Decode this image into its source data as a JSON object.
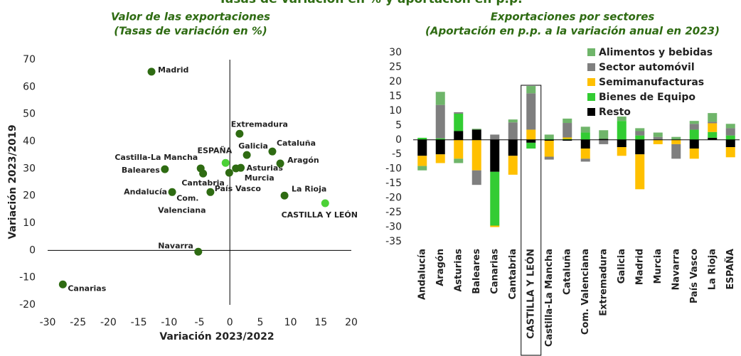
{
  "title": "Tasas de variación en % y aportación en p.p.",
  "chart_data": [
    {
      "type": "scatter",
      "subtitle": [
        "Valor de las exportaciones",
        "(Tasas de variación en %)"
      ],
      "x_label": "Variación 2023/2022",
      "y_label": "Variación 2023/2019",
      "labels": [
        "Madrid",
        "Canarias",
        "Navarra",
        "CASTILLA Y LEÓN",
        "La Rioja",
        "Andalucía",
        "Baleares",
        "Castilla-La Mancha",
        "Cantabria",
        [
          "Com.",
          "Valenciana"
        ],
        "ESPAÑA",
        "País Vasco",
        "Murcia",
        "Asturias",
        "Extremadura",
        "Galicia",
        "Cataluña",
        "Aragón"
      ],
      "x": [
        -12.9,
        -27.5,
        -5.2,
        15.7,
        9.0,
        -9.5,
        -10.7,
        -4.8,
        -4.4,
        -3.2,
        -0.7,
        -0.1,
        1.0,
        1.8,
        1.6,
        2.8,
        7.0,
        8.3
      ],
      "y": [
        65.6,
        -12.5,
        -0.5,
        17.3,
        20.1,
        21.4,
        29.8,
        30.1,
        28.2,
        21.4,
        32.1,
        28.5,
        30.1,
        30.3,
        42.8,
        35.0,
        36.3,
        31.9
      ],
      "colors": [
        "#2e6b12",
        "#2e6b12",
        "#2e6b12",
        "#4cd137",
        "#2e6b12",
        "#2e6b12",
        "#2e6b12",
        "#2e6b12",
        "#2e6b12",
        "#2e6b12",
        "#4cd137",
        "#2e6b12",
        "#2e6b12",
        "#2e6b12",
        "#2e6b12",
        "#2e6b12",
        "#2e6b12",
        "#2e6b12"
      ],
      "xlim": [
        -30,
        20
      ],
      "xticks": [
        -30,
        -25,
        -20,
        -15,
        -10,
        -5,
        0,
        5,
        10,
        15,
        20
      ],
      "ylim": [
        -20,
        70
      ],
      "yticks": [
        -20,
        -10,
        0,
        10,
        20,
        30,
        40,
        50,
        60,
        70
      ]
    },
    {
      "type": "stacked_bar",
      "subtitle": [
        "Exportaciones por sectores",
        "(Aportación en p.p. a la variación anual en 2023)"
      ],
      "categories": [
        "Andalucía",
        "Aragón",
        "Asturias",
        "Baleares",
        "Canarias",
        "Cantabria",
        "CASTILLA Y LEÓN",
        "Castilla-La Mancha",
        "Cataluña",
        "Com. Valenciana",
        "Extremadura",
        "Galicia",
        "Madrid",
        "Murcia",
        "Navarra",
        "País Vasco",
        "La Rioja",
        "ESPAÑA"
      ],
      "series": [
        {
          "name": "Alimentos y bebidas",
          "color": "#6fb56a",
          "values": [
            -1.5,
            4.5,
            -1.5,
            0.3,
            0,
            1,
            2.5,
            1.5,
            1.5,
            2,
            3,
            1.5,
            1,
            1.5,
            1,
            1,
            3,
            1.5
          ]
        },
        {
          "name": "Sector automóvil",
          "color": "#7f7f7f",
          "values": [
            0,
            11.5,
            0.5,
            -5,
            1.8,
            6,
            12.5,
            -1,
            5,
            -1,
            -1.5,
            0,
            1.5,
            1,
            -5,
            2,
            0.5,
            2.5
          ]
        },
        {
          "name": "Semimanufacturas",
          "color": "#ffc000",
          "values": [
            -3.5,
            -3,
            -6.5,
            -10.5,
            -0.5,
            -6.5,
            3.5,
            -5.5,
            0.5,
            -3.5,
            0,
            -3,
            -12,
            -1.5,
            -1.5,
            -3.5,
            3,
            -3.5
          ]
        },
        {
          "name": "Bienes de Equipo",
          "color": "#33cc33",
          "values": [
            0.7,
            0.5,
            6,
            0,
            -18.5,
            0,
            -2,
            0.3,
            0.3,
            2.5,
            0,
            6.5,
            1.5,
            0,
            0,
            3.5,
            2,
            1.5
          ]
        },
        {
          "name": "Resto",
          "color": "#000000",
          "values": [
            -5.5,
            -5,
            3,
            3.5,
            -11,
            -5.5,
            -1,
            -0.3,
            -0.3,
            -3,
            0.3,
            -2.5,
            -5,
            0,
            0,
            -3,
            0.7,
            -2.5
          ]
        }
      ],
      "ylim": [
        -35,
        30
      ],
      "yticks": [
        -35,
        -30,
        -25,
        -20,
        -15,
        -10,
        -5,
        0,
        5,
        10,
        15,
        20,
        25,
        30
      ],
      "highlight": "CASTILLA Y LEÓN"
    }
  ]
}
